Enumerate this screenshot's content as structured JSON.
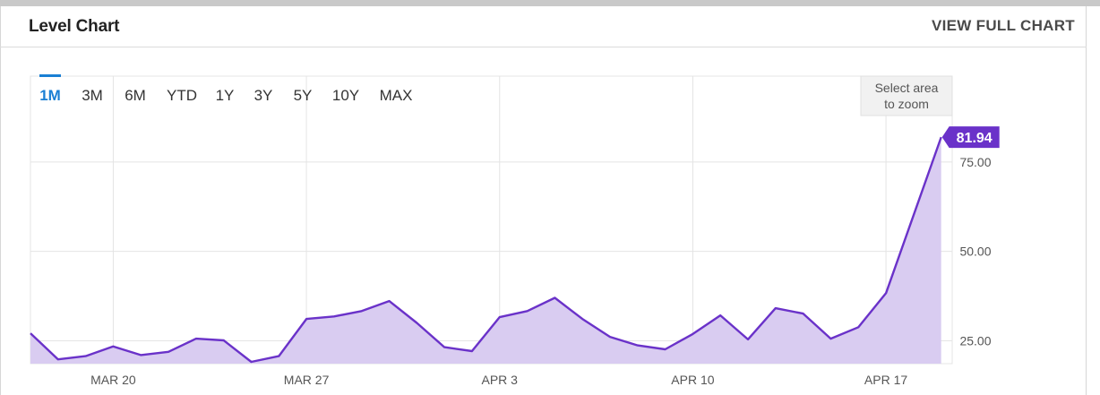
{
  "header": {
    "title": "Level Chart",
    "view_full_label": "VIEW FULL CHART"
  },
  "range_buttons": [
    {
      "label": "1M",
      "active": true
    },
    {
      "label": "3M",
      "active": false
    },
    {
      "label": "6M",
      "active": false
    },
    {
      "label": "YTD",
      "active": false
    },
    {
      "label": "1Y",
      "active": false
    },
    {
      "label": "3Y",
      "active": false
    },
    {
      "label": "5Y",
      "active": false
    },
    {
      "label": "10Y",
      "active": false
    },
    {
      "label": "MAX",
      "active": false
    }
  ],
  "zoom_note": {
    "line1": "Select area",
    "line2": "to zoom"
  },
  "colors": {
    "line": "#6a32c9",
    "fill": "#d9ccf1",
    "accent": "#1a7fd4",
    "label_bg": "#6a32c9"
  },
  "chart_data": {
    "type": "area",
    "title": "",
    "xlabel": "",
    "ylabel": "",
    "x_ticks": [
      {
        "label": "MAR 20",
        "day": 3
      },
      {
        "label": "MAR 27",
        "day": 10
      },
      {
        "label": "APR 3",
        "day": 17
      },
      {
        "label": "APR 10",
        "day": 24
      },
      {
        "label": "APR 17",
        "day": 31
      }
    ],
    "y_ticks": [
      {
        "label": "25.00",
        "value": 25
      },
      {
        "label": "50.00",
        "value": 50
      },
      {
        "label": "75.00",
        "value": 75
      }
    ],
    "ylim": [
      18.6,
      99
    ],
    "xlim": [
      0,
      33.4
    ],
    "grid": true,
    "series": [
      {
        "points": [
          {
            "day": 0,
            "value": 27.1
          },
          {
            "day": 1,
            "value": 19.8
          },
          {
            "day": 2,
            "value": 20.7
          },
          {
            "day": 3,
            "value": 23.4
          },
          {
            "day": 4,
            "value": 21.0
          },
          {
            "day": 5,
            "value": 21.9
          },
          {
            "day": 6,
            "value": 25.6
          },
          {
            "day": 7,
            "value": 25.1
          },
          {
            "day": 8,
            "value": 19.1
          },
          {
            "day": 9,
            "value": 20.7
          },
          {
            "day": 10,
            "value": 31.1
          },
          {
            "day": 11,
            "value": 31.8
          },
          {
            "day": 12,
            "value": 33.3
          },
          {
            "day": 13,
            "value": 36.1
          },
          {
            "day": 14,
            "value": 30.0
          },
          {
            "day": 15,
            "value": 23.2
          },
          {
            "day": 16,
            "value": 22.1
          },
          {
            "day": 17,
            "value": 31.6
          },
          {
            "day": 18,
            "value": 33.3
          },
          {
            "day": 19,
            "value": 37.0
          },
          {
            "day": 20,
            "value": 31.1
          },
          {
            "day": 21,
            "value": 26.1
          },
          {
            "day": 22,
            "value": 23.7
          },
          {
            "day": 23,
            "value": 22.6
          },
          {
            "day": 24,
            "value": 26.9
          },
          {
            "day": 25,
            "value": 32.1
          },
          {
            "day": 26,
            "value": 25.4
          },
          {
            "day": 27,
            "value": 34.1
          },
          {
            "day": 28,
            "value": 32.6
          },
          {
            "day": 29,
            "value": 25.6
          },
          {
            "day": 30,
            "value": 28.8
          },
          {
            "day": 31,
            "value": 38.3
          },
          {
            "day": 33,
            "value": 81.94
          }
        ]
      }
    ],
    "last_value_label": "81.94"
  }
}
